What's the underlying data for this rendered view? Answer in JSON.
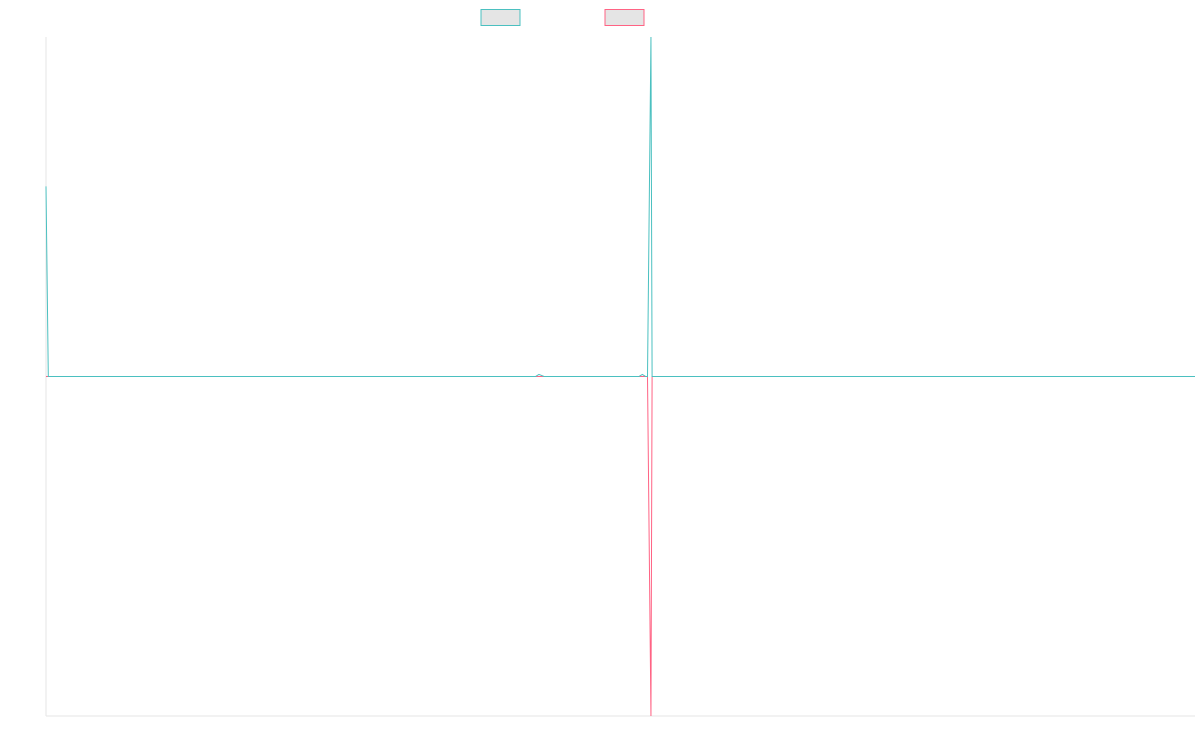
{
  "chart_data": {
    "type": "line",
    "title": "",
    "xlabel": "",
    "ylabel": "",
    "grid": false,
    "legend": "top-center",
    "ylim": [
      -1,
      1
    ],
    "xlim": [
      0,
      1
    ],
    "x": [
      0.0,
      0.002,
      0.2,
      0.4,
      0.426,
      0.429,
      0.4335,
      0.516,
      0.519,
      0.522,
      0.5235,
      0.5265,
      0.5275,
      0.6,
      0.8,
      1.0
    ],
    "series": [
      {
        "color": "#4bc0c0",
        "values": [
          0.56,
          0.0,
          0.0,
          0.0,
          0.0,
          0.006,
          0.0,
          0.0,
          0.006,
          0.0,
          0.0,
          1.0,
          0.0,
          0.0,
          0.0,
          0.0
        ]
      },
      {
        "color": "#ff6384",
        "values": [
          0.0,
          0.0,
          0.0,
          0.0,
          0.0,
          0.0,
          0.0,
          0.0,
          0.0,
          0.0,
          0.0,
          -1.0,
          0.0,
          0.0,
          0.0,
          0.0
        ]
      }
    ],
    "axis_color": "#e5e5e5",
    "legend_fill": "#e5e5e5"
  }
}
